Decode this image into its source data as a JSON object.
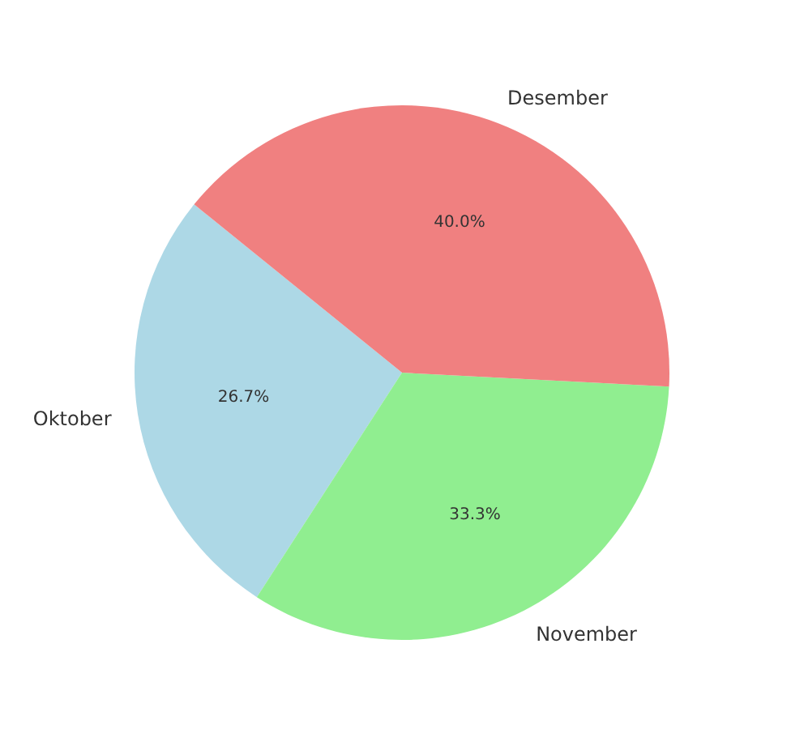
{
  "chart_data": {
    "type": "pie",
    "categories": [
      "Oktober",
      "November",
      "Desember"
    ],
    "values": [
      26.7,
      33.3,
      40.0
    ],
    "colors": [
      "#add8e6",
      "#90ee90",
      "#f08080"
    ],
    "value_labels": [
      "26.7%",
      "33.3%",
      "40.0%"
    ],
    "legend": false
  }
}
